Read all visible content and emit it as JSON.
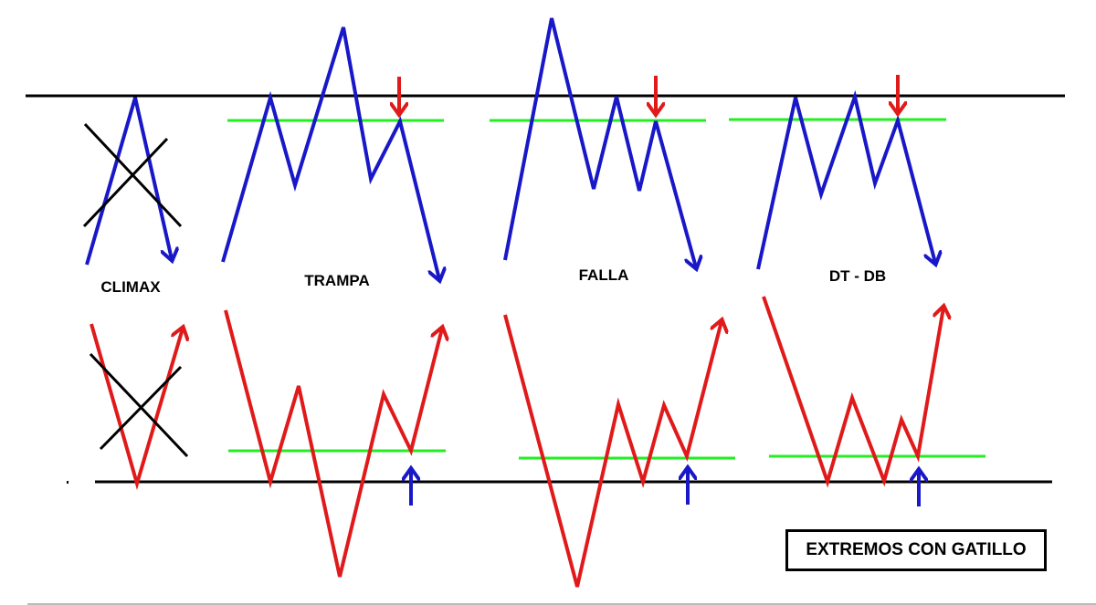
{
  "colors": {
    "top_pattern": "#1818c8",
    "bottom_pattern": "#e01a1a",
    "trigger_line": "#22ee22",
    "extreme_line": "#000000",
    "crossed_out": "#000000",
    "top_trigger_arrow": "#e01a1a",
    "bottom_trigger_arrow": "#1818c8"
  },
  "patterns": [
    {
      "id": "climax",
      "label": "CLIMAX",
      "crossed_out": true,
      "has_trigger": false
    },
    {
      "id": "trampa",
      "label": "TRAMPA",
      "crossed_out": false,
      "has_trigger": true
    },
    {
      "id": "falla",
      "label": "FALLA",
      "crossed_out": false,
      "has_trigger": true
    },
    {
      "id": "dt-db",
      "label": "DT - DB",
      "crossed_out": false,
      "has_trigger": true
    }
  ],
  "title": "EXTREMOS CON GATILLO"
}
